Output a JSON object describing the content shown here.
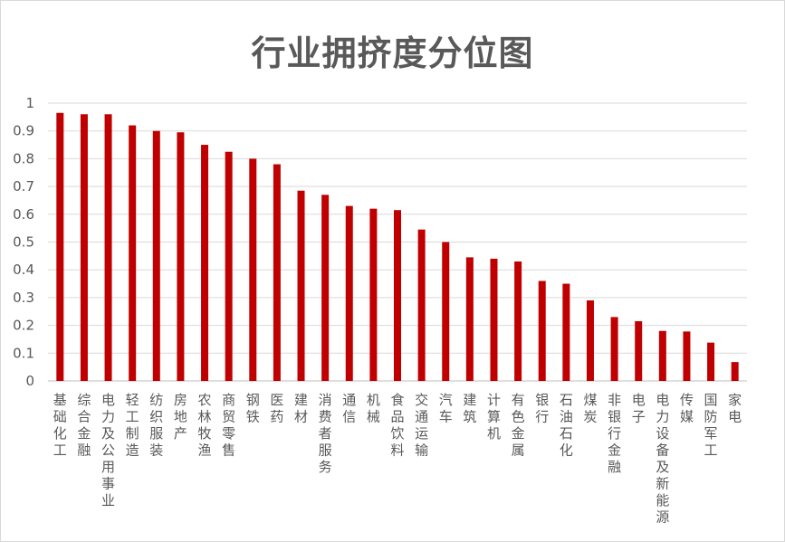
{
  "chart_data": {
    "type": "bar",
    "title": "行业拥挤度分位图",
    "xlabel": "",
    "ylabel": "",
    "ylim": [
      0,
      1
    ],
    "yticks": [
      "0",
      "0.1",
      "0.2",
      "0.3",
      "0.4",
      "0.5",
      "0.6",
      "0.7",
      "0.8",
      "0.9",
      "1"
    ],
    "grid": true,
    "legend": "none",
    "bar_color": "#c00000",
    "categories": [
      "基础化工",
      "综合金融",
      "电力及公用事业",
      "轻工制造",
      "纺织服装",
      "房地产",
      "农林牧渔",
      "商贸零售",
      "钢铁",
      "医药",
      "建材",
      "消费者服务",
      "通信",
      "机械",
      "食品饮料",
      "交通运输",
      "汽车",
      "建筑",
      "计算机",
      "有色金属",
      "银行",
      "石油石化",
      "煤炭",
      "非银行金融",
      "电子",
      "电力设备及新能源",
      "传媒",
      "国防军工",
      "家电"
    ],
    "values": [
      0.965,
      0.96,
      0.96,
      0.92,
      0.9,
      0.895,
      0.85,
      0.825,
      0.8,
      0.78,
      0.685,
      0.67,
      0.63,
      0.62,
      0.615,
      0.545,
      0.5,
      0.445,
      0.44,
      0.43,
      0.36,
      0.35,
      0.29,
      0.23,
      0.215,
      0.18,
      0.178,
      0.138,
      0.068
    ]
  }
}
